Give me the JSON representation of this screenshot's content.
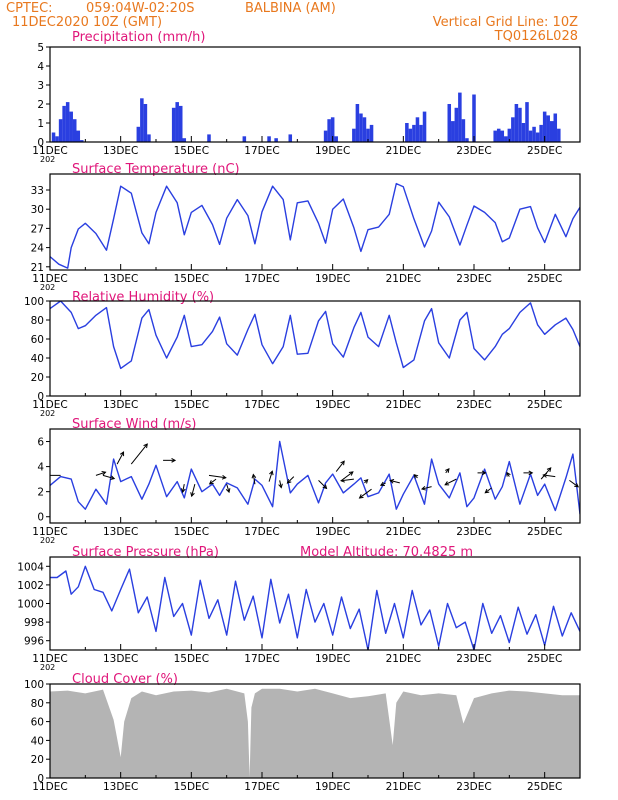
{
  "header": {
    "source": "CPTEC:",
    "coords": "059:04W-02:20S",
    "station": "BALBINA (AM)",
    "datetime": "11DEC2020 10Z (GMT)",
    "grid_note": "Vertical Grid Line: 10Z",
    "run_code": "TQ0126L028"
  },
  "colors": {
    "header": "#e8781e",
    "title": "#e0167a",
    "line": "#2a3fe0",
    "cloud": "#b4b4b4"
  },
  "x_axis": {
    "ticks": [
      "11DEC",
      "13DEC",
      "15DEC",
      "17DEC",
      "19DEC",
      "21DEC",
      "23DEC",
      "25DEC"
    ],
    "tick_days": [
      11,
      13,
      15,
      17,
      19,
      21,
      23,
      25
    ],
    "start_day": 11,
    "end_day": 26,
    "year_stub": "202"
  },
  "chart_data": [
    {
      "id": "precip",
      "type": "bar",
      "title": "Precipitation (mm/h)",
      "ylim": [
        0,
        5
      ],
      "yticks": [
        0,
        1,
        2,
        3,
        4,
        5
      ],
      "x": [
        11.1,
        11.2,
        11.3,
        11.4,
        11.5,
        11.6,
        11.7,
        11.8,
        11.9,
        13.5,
        13.6,
        13.7,
        13.8,
        14.5,
        14.6,
        14.7,
        14.8,
        15.5,
        16.5,
        17.2,
        17.4,
        17.8,
        18.8,
        18.9,
        19.0,
        19.1,
        19.6,
        19.7,
        19.8,
        19.9,
        20.0,
        20.1,
        21.1,
        21.2,
        21.3,
        21.4,
        21.5,
        21.6,
        22.3,
        22.4,
        22.5,
        22.6,
        22.7,
        22.8,
        23.0,
        23.6,
        23.7,
        23.8,
        23.9,
        24.0,
        24.1,
        24.2,
        24.3,
        24.4,
        24.5,
        24.6,
        24.7,
        24.8,
        24.9,
        25.0,
        25.1,
        25.2,
        25.3,
        25.4
      ],
      "values": [
        0.5,
        0.3,
        1.2,
        1.9,
        2.1,
        1.6,
        1.2,
        0.6,
        0.1,
        0.8,
        2.3,
        2.0,
        0.4,
        1.8,
        2.1,
        1.9,
        0.2,
        0.4,
        0.3,
        0.3,
        0.2,
        0.4,
        0.6,
        1.2,
        1.3,
        0.3,
        0.7,
        2.0,
        1.5,
        1.3,
        0.7,
        0.9,
        1.0,
        0.7,
        0.9,
        1.3,
        0.9,
        1.6,
        2.0,
        1.1,
        1.8,
        2.6,
        1.2,
        0.2,
        2.5,
        0.6,
        0.7,
        0.6,
        0.3,
        0.7,
        1.3,
        2.0,
        1.8,
        1.0,
        2.1,
        0.6,
        0.8,
        0.5,
        0.9,
        1.6,
        1.4,
        1.1,
        1.5,
        0.7
      ]
    },
    {
      "id": "temp",
      "type": "line",
      "title": "Surface Temperature (nC)",
      "ylim": [
        20.5,
        35.5
      ],
      "yticks": [
        21,
        24,
        27,
        30,
        33
      ],
      "x": [
        11.0,
        11.25,
        11.5,
        11.6,
        11.8,
        12.0,
        12.3,
        12.6,
        12.8,
        13.0,
        13.3,
        13.6,
        13.8,
        14.0,
        14.3,
        14.6,
        14.8,
        15.0,
        15.3,
        15.6,
        15.8,
        16.0,
        16.3,
        16.6,
        16.8,
        17.0,
        17.3,
        17.6,
        17.8,
        18.0,
        18.3,
        18.6,
        18.8,
        19.0,
        19.3,
        19.6,
        19.8,
        20.0,
        20.3,
        20.6,
        20.8,
        21.0,
        21.3,
        21.6,
        21.8,
        22.0,
        22.3,
        22.6,
        22.8,
        23.0,
        23.3,
        23.6,
        23.8,
        24.0,
        24.3,
        24.6,
        24.8,
        25.0,
        25.3,
        25.6,
        25.8,
        26.0
      ],
      "values": [
        22.6,
        21.4,
        20.8,
        24.0,
        26.9,
        27.8,
        26.2,
        23.6,
        28.5,
        33.6,
        32.5,
        26.3,
        24.6,
        29.5,
        33.6,
        31.0,
        26.0,
        29.5,
        30.6,
        27.6,
        24.5,
        28.6,
        31.5,
        29.0,
        24.6,
        29.6,
        33.6,
        31.5,
        25.2,
        31.0,
        31.3,
        27.8,
        24.7,
        30.0,
        31.6,
        27.1,
        23.4,
        26.8,
        27.2,
        29.2,
        34.0,
        33.5,
        28.5,
        24.1,
        26.6,
        31.1,
        28.8,
        24.4,
        27.5,
        30.5,
        29.5,
        27.9,
        24.9,
        25.5,
        30.0,
        30.4,
        27.1,
        24.8,
        29.2,
        25.7,
        28.5,
        30.3
      ]
    },
    {
      "id": "rh",
      "type": "line",
      "title": "Relative Humidity (%)",
      "ylim": [
        0,
        100
      ],
      "yticks": [
        0,
        20,
        40,
        60,
        80,
        100
      ],
      "x": [
        11.0,
        11.3,
        11.6,
        11.8,
        12.0,
        12.3,
        12.6,
        12.8,
        13.0,
        13.3,
        13.6,
        13.8,
        14.0,
        14.3,
        14.6,
        14.8,
        15.0,
        15.3,
        15.6,
        15.8,
        16.0,
        16.3,
        16.6,
        16.8,
        17.0,
        17.3,
        17.6,
        17.8,
        18.0,
        18.3,
        18.6,
        18.8,
        19.0,
        19.3,
        19.6,
        19.8,
        20.0,
        20.3,
        20.6,
        20.8,
        21.0,
        21.3,
        21.6,
        21.8,
        22.0,
        22.3,
        22.6,
        22.8,
        23.0,
        23.3,
        23.6,
        23.8,
        24.0,
        24.3,
        24.6,
        24.8,
        25.0,
        25.3,
        25.6,
        25.8,
        26.0
      ],
      "values": [
        92,
        100,
        88,
        71,
        74,
        85,
        93,
        52,
        29,
        37,
        82,
        91,
        64,
        40,
        62,
        85,
        52,
        54,
        68,
        83,
        55,
        43,
        70,
        86,
        54,
        34,
        52,
        85,
        44,
        45,
        79,
        89,
        55,
        41,
        72,
        88,
        62,
        52,
        85,
        56,
        30,
        38,
        79,
        92,
        56,
        40,
        80,
        88,
        50,
        38,
        52,
        65,
        71,
        88,
        98,
        75,
        65,
        75,
        82,
        70,
        52
      ]
    },
    {
      "id": "wind",
      "type": "line",
      "title": "Surface Wind (m/s)",
      "ylim": [
        -0.5,
        7
      ],
      "yticks": [
        0,
        2,
        4,
        6
      ],
      "x": [
        11.0,
        11.3,
        11.6,
        11.8,
        12.0,
        12.3,
        12.6,
        12.8,
        13.0,
        13.3,
        13.6,
        13.8,
        14.0,
        14.3,
        14.6,
        14.8,
        15.0,
        15.3,
        15.6,
        15.8,
        16.0,
        16.3,
        16.6,
        16.8,
        17.0,
        17.3,
        17.5,
        17.8,
        18.0,
        18.3,
        18.6,
        18.8,
        19.0,
        19.3,
        19.6,
        19.8,
        20.0,
        20.3,
        20.6,
        20.8,
        21.0,
        21.3,
        21.6,
        21.8,
        22.0,
        22.3,
        22.6,
        22.8,
        23.0,
        23.3,
        23.6,
        23.8,
        24.0,
        24.3,
        24.6,
        24.8,
        25.0,
        25.3,
        25.6,
        25.8,
        26.0
      ],
      "values": [
        2.5,
        3.2,
        3.0,
        1.2,
        0.6,
        2.2,
        1.0,
        4.6,
        2.8,
        3.2,
        1.4,
        2.6,
        4.1,
        1.6,
        2.8,
        1.5,
        3.8,
        2.0,
        2.6,
        1.7,
        2.7,
        2.3,
        1.0,
        3.0,
        2.5,
        0.8,
        6.0,
        1.9,
        2.6,
        3.3,
        1.1,
        2.7,
        3.4,
        1.9,
        2.6,
        3.1,
        1.6,
        1.9,
        3.4,
        0.6,
        1.8,
        3.3,
        1.0,
        4.6,
        2.6,
        1.5,
        3.5,
        0.8,
        1.5,
        3.8,
        1.4,
        2.4,
        4.4,
        1.0,
        3.4,
        1.7,
        2.6,
        0.5,
        3.1,
        5.0,
        0.2
      ],
      "arrows": {
        "x": [
          11.3,
          12.3,
          12.5,
          12.9,
          13.3,
          14.2,
          14.8,
          15.1,
          15.5,
          15.7,
          16.0,
          16.8,
          17.2,
          17.5,
          17.9,
          18.6,
          19.1,
          19.3,
          19.6,
          19.9,
          20.1,
          20.5,
          20.9,
          21.4,
          21.8,
          22.2,
          22.5,
          23.1,
          23.5,
          24.0,
          24.4,
          24.9,
          25.3,
          25.7
        ],
        "y": [
          3.3,
          3.3,
          3.3,
          4.2,
          4.2,
          4.5,
          2.6,
          2.6,
          3.3,
          3.0,
          2.6,
          2.6,
          2.8,
          2.9,
          3.2,
          2.9,
          3.6,
          3.0,
          3.0,
          2.7,
          2.2,
          2.7,
          2.7,
          3.1,
          2.4,
          3.5,
          3.0,
          3.5,
          2.3,
          3.2,
          3.5,
          3.0,
          3.2,
          2.9
        ],
        "u": [
          -2.2,
          1.2,
          1.4,
          0.8,
          2.0,
          1.5,
          -0.2,
          -0.4,
          2.1,
          -0.8,
          0.3,
          -0.2,
          0.4,
          0.2,
          -0.8,
          1.0,
          1.0,
          1.2,
          -1.6,
          0.4,
          -1.5,
          -0.6,
          -1.2,
          -0.4,
          -1.2,
          0.4,
          -1.4,
          1.0,
          -0.8,
          -0.3,
          1.1,
          1.2,
          -1.5,
          1.1
        ],
        "v": [
          0.0,
          0.4,
          -0.4,
          1.5,
          2.5,
          0.0,
          -1.0,
          -1.5,
          -0.3,
          -0.6,
          -1.0,
          1.2,
          1.3,
          -0.9,
          -0.8,
          -1.0,
          1.3,
          0.9,
          -0.2,
          0.4,
          -1.1,
          -0.3,
          0.3,
          0.4,
          -0.3,
          0.5,
          -0.7,
          0.0,
          -0.6,
          0.5,
          0.0,
          1.4,
          0.2,
          -0.8
        ]
      }
    },
    {
      "id": "pressure",
      "type": "line",
      "title": "Surface Pressure (hPa)",
      "subtitle": "Model Altitude: 70.4825 m",
      "ylim": [
        995.0,
        1005.0
      ],
      "yticks": [
        996,
        998,
        1000,
        1002,
        1004
      ],
      "x": [
        11.0,
        11.2,
        11.45,
        11.6,
        11.8,
        12.0,
        12.25,
        12.5,
        12.75,
        13.0,
        13.25,
        13.5,
        13.75,
        14.0,
        14.25,
        14.5,
        14.75,
        15.0,
        15.25,
        15.5,
        15.75,
        16.0,
        16.25,
        16.5,
        16.75,
        17.0,
        17.25,
        17.5,
        17.75,
        18.0,
        18.25,
        18.5,
        18.75,
        19.0,
        19.25,
        19.5,
        19.75,
        20.0,
        20.25,
        20.5,
        20.75,
        21.0,
        21.25,
        21.5,
        21.75,
        22.0,
        22.25,
        22.5,
        22.75,
        23.0,
        23.25,
        23.5,
        23.75,
        24.0,
        24.25,
        24.5,
        24.75,
        25.0,
        25.25,
        25.5,
        25.75,
        26.0
      ],
      "values": [
        1002.8,
        1002.8,
        1003.5,
        1001.0,
        1001.8,
        1004.0,
        1001.5,
        1001.2,
        999.2,
        1001.5,
        1003.7,
        999.0,
        1000.7,
        997.0,
        1002.8,
        998.6,
        1000.0,
        996.6,
        1002.5,
        998.4,
        1000.4,
        996.6,
        1002.4,
        998.2,
        1000.8,
        996.3,
        1002.6,
        997.9,
        1001.0,
        996.3,
        1001.5,
        998.0,
        1000.0,
        996.6,
        1000.7,
        997.3,
        999.4,
        995.0,
        1001.4,
        996.8,
        1000.0,
        996.3,
        1001.4,
        997.7,
        999.3,
        995.4,
        1000.0,
        997.4,
        998.0,
        995.0,
        1000.0,
        996.8,
        998.7,
        995.8,
        999.6,
        996.7,
        998.8,
        995.5,
        999.7,
        996.5,
        999.0,
        997.0
      ]
    },
    {
      "id": "cloud",
      "type": "area",
      "title": "Cloud Cover (%)",
      "ylim": [
        0,
        100
      ],
      "yticks": [
        0,
        20,
        40,
        60,
        80,
        100
      ],
      "x": [
        11.0,
        11.5,
        12.0,
        12.5,
        12.8,
        13.0,
        13.1,
        13.3,
        13.6,
        14.0,
        14.5,
        15.0,
        15.5,
        16.0,
        16.5,
        16.6,
        16.65,
        16.7,
        16.8,
        17.0,
        17.5,
        18.0,
        18.5,
        19.0,
        19.5,
        20.0,
        20.5,
        20.7,
        20.8,
        21.0,
        21.5,
        22.0,
        22.5,
        22.7,
        23.0,
        23.5,
        24.0,
        24.5,
        25.0,
        25.5,
        26.0
      ],
      "values": [
        92,
        93,
        90,
        94,
        62,
        22,
        60,
        85,
        92,
        88,
        92,
        93,
        91,
        95,
        90,
        60,
        1,
        75,
        90,
        95,
        95,
        92,
        95,
        90,
        85,
        87,
        90,
        35,
        80,
        92,
        88,
        90,
        88,
        58,
        85,
        90,
        93,
        92,
        90,
        88,
        88
      ]
    }
  ]
}
